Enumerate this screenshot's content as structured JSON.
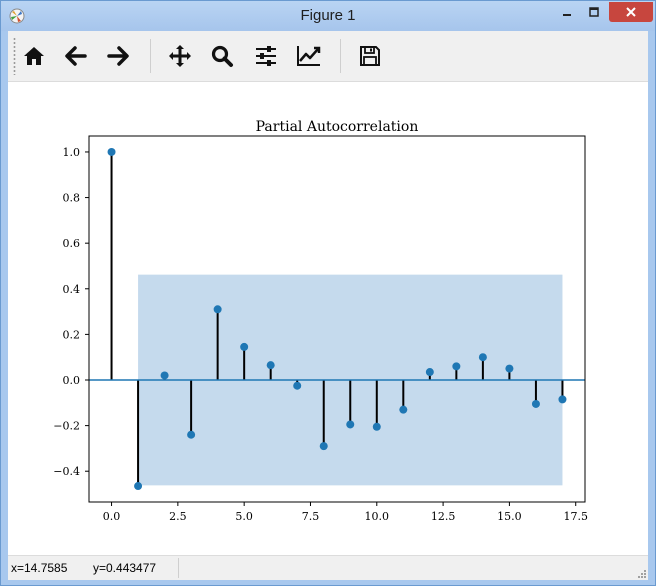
{
  "window": {
    "title": "Figure 1"
  },
  "toolbar": {
    "buttons": [
      {
        "name": "home",
        "icon": "home-icon"
      },
      {
        "name": "back",
        "icon": "arrow-left-icon"
      },
      {
        "name": "forward",
        "icon": "arrow-right-icon"
      },
      {
        "name": "pan",
        "icon": "move-icon"
      },
      {
        "name": "zoom",
        "icon": "magnifier-icon"
      },
      {
        "name": "configure-subplots",
        "icon": "sliders-icon"
      },
      {
        "name": "edit-axis",
        "icon": "line-chart-icon"
      },
      {
        "name": "save",
        "icon": "floppy-disk-icon"
      }
    ]
  },
  "status": {
    "x_readout": "x=14.7585",
    "y_readout": "y=0.443477"
  },
  "colors": {
    "marker": "#1f77b4",
    "stem": "#000000",
    "band": "#c5daed",
    "zero_line": "#1f77b4"
  },
  "chart_data": {
    "type": "stem",
    "title": "Partial Autocorrelation",
    "xlabel": "",
    "ylabel": "",
    "xlim": [
      -0.85,
      17.85
    ],
    "ylim": [
      -0.535,
      1.07
    ],
    "x_ticks": [
      0,
      2.5,
      5,
      7.5,
      10,
      12.5,
      15,
      17.5
    ],
    "x_tick_labels": [
      "0.0",
      "2.5",
      "5.0",
      "7.5",
      "10.0",
      "12.5",
      "15.0",
      "17.5"
    ],
    "y_ticks": [
      -0.4,
      -0.2,
      0,
      0.2,
      0.4,
      0.6,
      0.8,
      1.0
    ],
    "y_tick_labels": [
      "−0.4",
      "−0.2",
      "0.0",
      "0.2",
      "0.4",
      "0.6",
      "0.8",
      "1.0"
    ],
    "x": [
      0,
      1,
      2,
      3,
      4,
      5,
      6,
      7,
      8,
      9,
      10,
      11,
      12,
      13,
      14,
      15,
      16,
      17
    ],
    "values": [
      1.0,
      -0.465,
      0.02,
      -0.24,
      0.31,
      0.145,
      0.065,
      -0.025,
      -0.29,
      -0.195,
      -0.205,
      -0.13,
      0.035,
      0.06,
      0.1,
      0.05,
      -0.105,
      -0.085
    ],
    "confidence_band": {
      "x_range": [
        1,
        17
      ],
      "upper": 0.462,
      "lower": -0.462
    },
    "grid": false
  }
}
